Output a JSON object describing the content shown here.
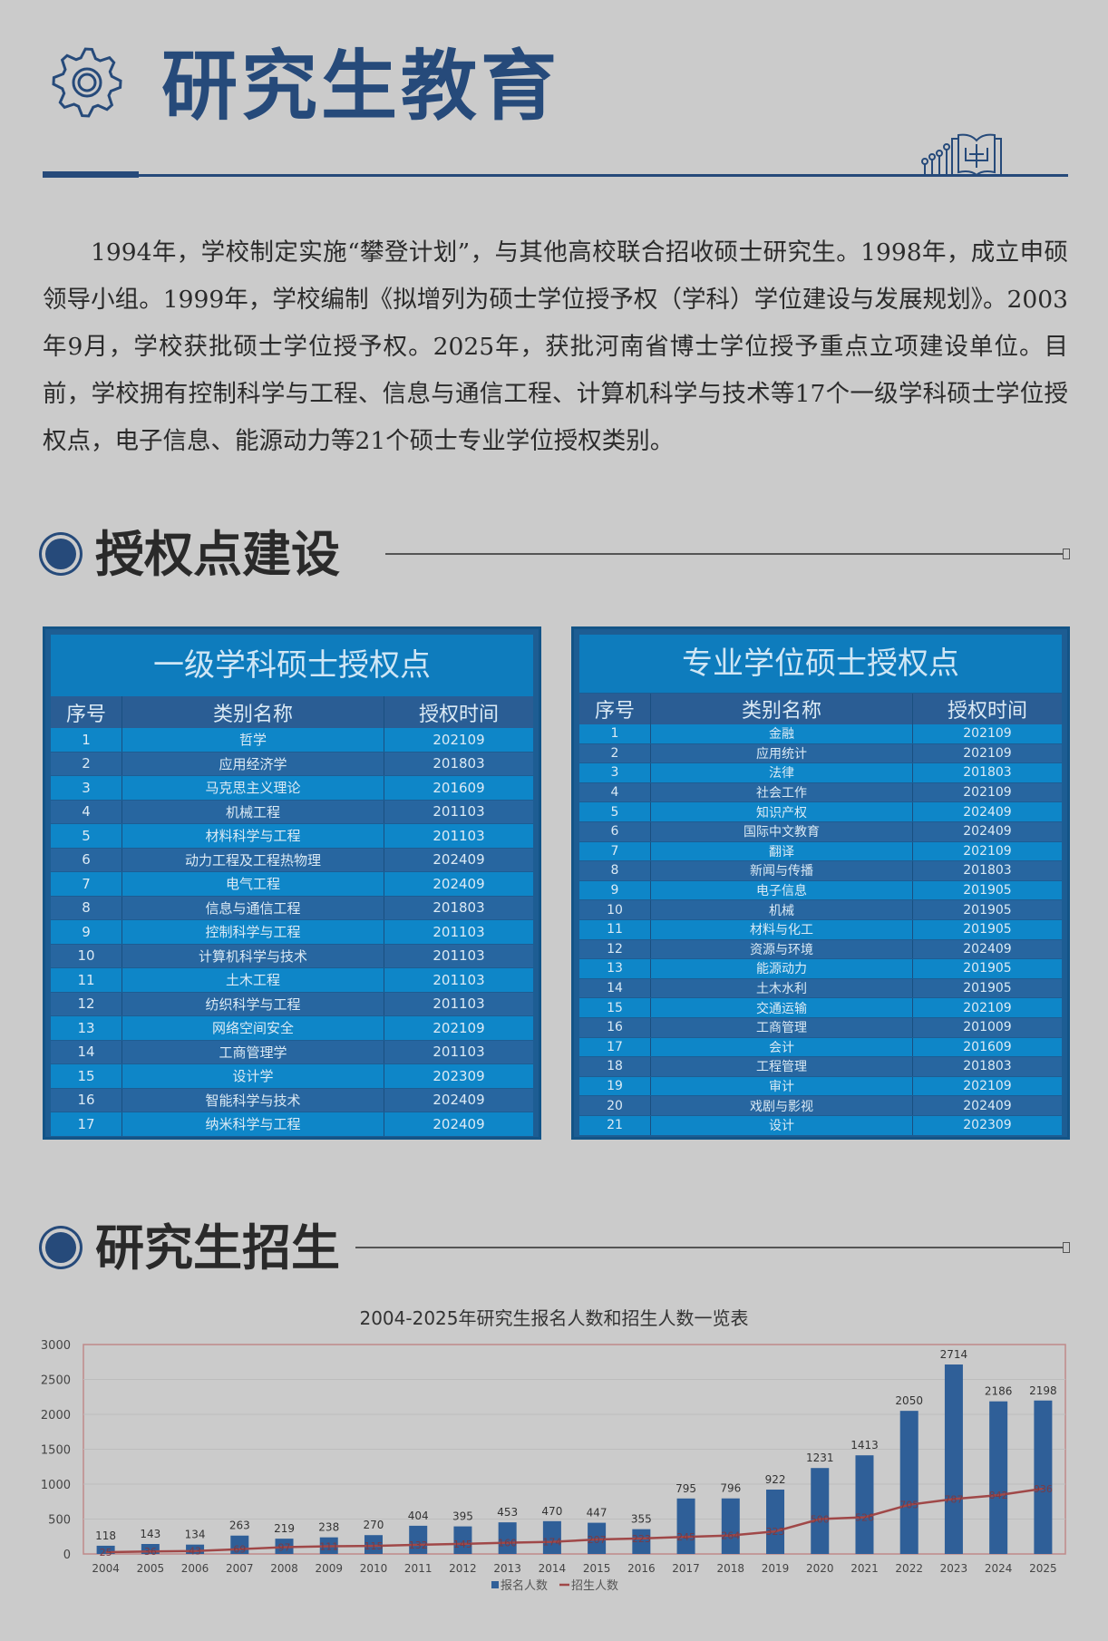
{
  "header": {
    "title": "研究生教育",
    "icon": "gear-icon",
    "decoration_icon": "book-icon"
  },
  "intro": "1994年，学校制定实施“攀登计划”，与其他高校联合招收硕士研究生。1998年，成立申硕领导小组。1999年，学校编制《拟增列为硕士学位授予权（学科）学位建设与发展规划》。2003年9月，学校获批硕士学位授予权。2025年，获批河南省博士学位授予重点立项建设单位。目前，学校拥有控制科学与工程、信息与通信工程、计算机科学与技术等17个一级学科硕士学位授权点，电子信息、能源动力等21个硕士专业学位授权类别。",
  "section1": {
    "title": "授权点建设"
  },
  "section2": {
    "title": "研究生招生"
  },
  "colors": {
    "navy": "#264a7a",
    "table_light": "#0e86c8",
    "table_dark": "#2766a0",
    "bar": "#2f5f98",
    "line": "#a04848"
  },
  "table_left": {
    "title": "一级学科硕士授权点",
    "headers": [
      "序号",
      "类别名称",
      "授权时间"
    ],
    "rows": [
      [
        "1",
        "哲学",
        "202109"
      ],
      [
        "2",
        "应用经济学",
        "201803"
      ],
      [
        "3",
        "马克思主义理论",
        "201609"
      ],
      [
        "4",
        "机械工程",
        "201103"
      ],
      [
        "5",
        "材料科学与工程",
        "201103"
      ],
      [
        "6",
        "动力工程及工程热物理",
        "202409"
      ],
      [
        "7",
        "电气工程",
        "202409"
      ],
      [
        "8",
        "信息与通信工程",
        "201803"
      ],
      [
        "9",
        "控制科学与工程",
        "201103"
      ],
      [
        "10",
        "计算机科学与技术",
        "201103"
      ],
      [
        "11",
        "土木工程",
        "201103"
      ],
      [
        "12",
        "纺织科学与工程",
        "201103"
      ],
      [
        "13",
        "网络空间安全",
        "202109"
      ],
      [
        "14",
        "工商管理学",
        "201103"
      ],
      [
        "15",
        "设计学",
        "202309"
      ],
      [
        "16",
        "智能科学与技术",
        "202409"
      ],
      [
        "17",
        "纳米科学与工程",
        "202409"
      ]
    ]
  },
  "table_right": {
    "title": "专业学位硕士授权点",
    "headers": [
      "序号",
      "类别名称",
      "授权时间"
    ],
    "rows": [
      [
        "1",
        "金融",
        "202109"
      ],
      [
        "2",
        "应用统计",
        "202109"
      ],
      [
        "3",
        "法律",
        "201803"
      ],
      [
        "4",
        "社会工作",
        "202109"
      ],
      [
        "5",
        "知识产权",
        "202409"
      ],
      [
        "6",
        "国际中文教育",
        "202409"
      ],
      [
        "7",
        "翻译",
        "202109"
      ],
      [
        "8",
        "新闻与传播",
        "201803"
      ],
      [
        "9",
        "电子信息",
        "201905"
      ],
      [
        "10",
        "机械",
        "201905"
      ],
      [
        "11",
        "材料与化工",
        "201905"
      ],
      [
        "12",
        "资源与环境",
        "202409"
      ],
      [
        "13",
        "能源动力",
        "201905"
      ],
      [
        "14",
        "土木水利",
        "201905"
      ],
      [
        "15",
        "交通运输",
        "202109"
      ],
      [
        "16",
        "工商管理",
        "201009"
      ],
      [
        "17",
        "会计",
        "201609"
      ],
      [
        "18",
        "工程管理",
        "201803"
      ],
      [
        "19",
        "审计",
        "202109"
      ],
      [
        "20",
        "戏剧与影视",
        "202409"
      ],
      [
        "21",
        "设计",
        "202309"
      ]
    ]
  },
  "chart_data": {
    "type": "bar+line",
    "title": "2004-2025年研究生报名人数和招生人数一览表",
    "categories": [
      "2004",
      "2005",
      "2006",
      "2007",
      "2008",
      "2009",
      "2010",
      "2011",
      "2012",
      "2013",
      "2014",
      "2015",
      "2016",
      "2017",
      "2018",
      "2019",
      "2020",
      "2021",
      "2022",
      "2023",
      "2024",
      "2025"
    ],
    "series": [
      {
        "name": "报名人数",
        "type": "bar",
        "values": [
          118,
          143,
          134,
          263,
          219,
          238,
          270,
          404,
          395,
          453,
          470,
          447,
          355,
          795,
          796,
          922,
          1231,
          1413,
          2050,
          2714,
          2186,
          2198
        ]
      },
      {
        "name": "招生人数",
        "type": "line",
        "values": [
          25,
          36,
          43,
          69,
          97,
          111,
          115,
          132,
          145,
          160,
          174,
          207,
          223,
          245,
          264,
          323,
          500,
          526,
          705,
          787,
          842,
          936
        ]
      }
    ],
    "yticks": [
      0,
      500,
      1000,
      1500,
      2000,
      2500,
      3000
    ],
    "ylim": [
      0,
      3000
    ],
    "grid": true,
    "legend": "bottom"
  }
}
